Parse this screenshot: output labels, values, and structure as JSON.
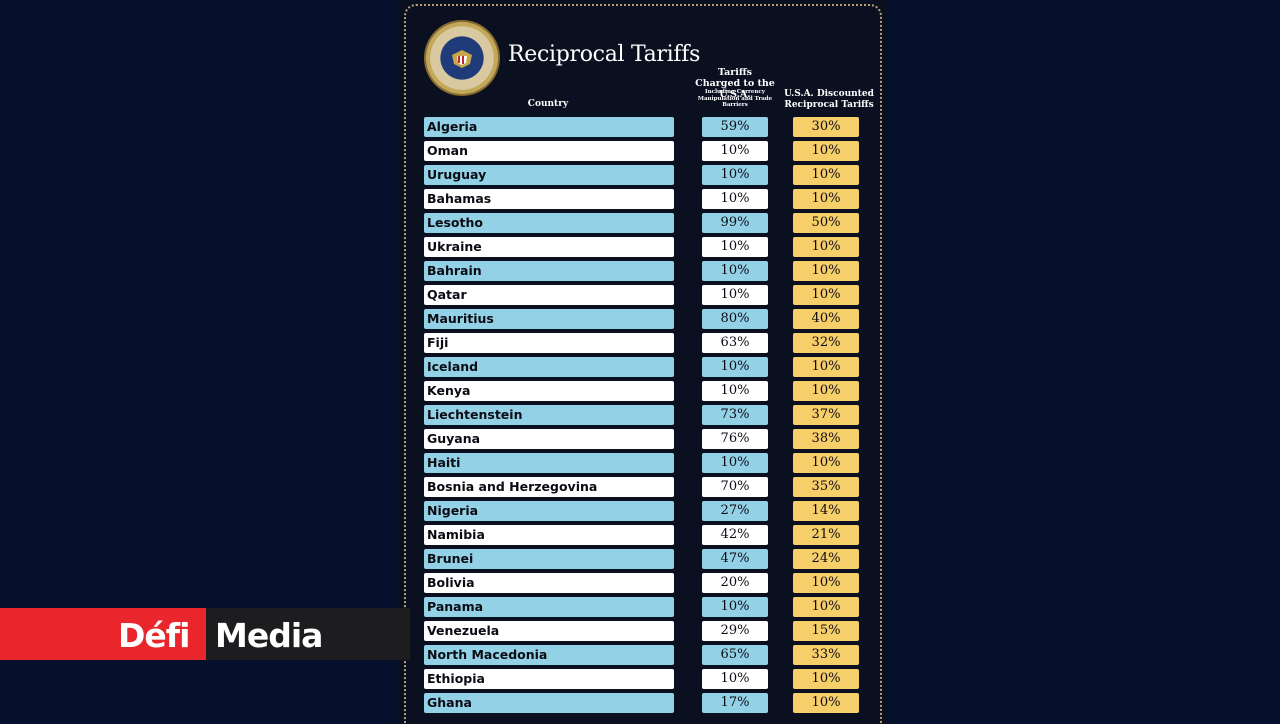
{
  "title": "Reciprocal Tariffs",
  "seal_text": "SEAL OF THE PRESIDENT OF THE UNITED STATES",
  "headers": {
    "country": "Country",
    "charged": "Tariffs Charged to the U.S.A.",
    "charged_sub": "Including Currency Manipulation and Trade Barriers",
    "reciprocal": "U.S.A. Discounted Reciprocal Tariffs"
  },
  "rows": [
    {
      "country": "Algeria",
      "charged": "59%",
      "reciprocal": "30%"
    },
    {
      "country": "Oman",
      "charged": "10%",
      "reciprocal": "10%"
    },
    {
      "country": "Uruguay",
      "charged": "10%",
      "reciprocal": "10%"
    },
    {
      "country": "Bahamas",
      "charged": "10%",
      "reciprocal": "10%"
    },
    {
      "country": "Lesotho",
      "charged": "99%",
      "reciprocal": "50%"
    },
    {
      "country": "Ukraine",
      "charged": "10%",
      "reciprocal": "10%"
    },
    {
      "country": "Bahrain",
      "charged": "10%",
      "reciprocal": "10%"
    },
    {
      "country": "Qatar",
      "charged": "10%",
      "reciprocal": "10%"
    },
    {
      "country": "Mauritius",
      "charged": "80%",
      "reciprocal": "40%"
    },
    {
      "country": "Fiji",
      "charged": "63%",
      "reciprocal": "32%"
    },
    {
      "country": "Iceland",
      "charged": "10%",
      "reciprocal": "10%"
    },
    {
      "country": "Kenya",
      "charged": "10%",
      "reciprocal": "10%"
    },
    {
      "country": "Liechtenstein",
      "charged": "73%",
      "reciprocal": "37%"
    },
    {
      "country": "Guyana",
      "charged": "76%",
      "reciprocal": "38%"
    },
    {
      "country": "Haiti",
      "charged": "10%",
      "reciprocal": "10%"
    },
    {
      "country": "Bosnia and Herzegovina",
      "charged": "70%",
      "reciprocal": "35%"
    },
    {
      "country": "Nigeria",
      "charged": "27%",
      "reciprocal": "14%"
    },
    {
      "country": "Namibia",
      "charged": "42%",
      "reciprocal": "21%"
    },
    {
      "country": "Brunei",
      "charged": "47%",
      "reciprocal": "24%"
    },
    {
      "country": "Bolivia",
      "charged": "20%",
      "reciprocal": "10%"
    },
    {
      "country": "Panama",
      "charged": "10%",
      "reciprocal": "10%"
    },
    {
      "country": "Venezuela",
      "charged": "29%",
      "reciprocal": "15%"
    },
    {
      "country": "North Macedonia",
      "charged": "65%",
      "reciprocal": "33%"
    },
    {
      "country": "Ethiopia",
      "charged": "10%",
      "reciprocal": "10%"
    },
    {
      "country": "Ghana",
      "charged": "17%",
      "reciprocal": "10%"
    }
  ],
  "colors": {
    "row_blue": "#93d2e6",
    "row_white": "#ffffff",
    "reciprocal_yellow": "#f6cf6a",
    "logo_red": "#e8262c"
  },
  "logo": {
    "defi": "Défi",
    "media": "Media"
  }
}
